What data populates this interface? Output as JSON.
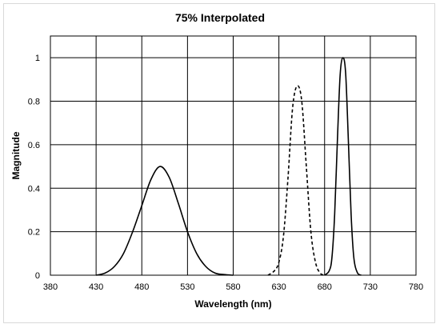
{
  "chart_data": {
    "type": "line",
    "title": "75% Interpolated",
    "xlabel": "Wavelength (nm)",
    "ylabel": "Magnitude",
    "xlim": [
      380,
      780
    ],
    "ylim": [
      0,
      1.1
    ],
    "xticks": [
      380,
      430,
      480,
      530,
      580,
      630,
      680,
      730,
      780
    ],
    "yticks": [
      0,
      0.2,
      0.4,
      0.6,
      0.8,
      1
    ],
    "ytick_labels": [
      "0",
      "0.2",
      "0.4",
      "0.6",
      "0.8",
      "1"
    ],
    "grid": true,
    "legend": "none",
    "series": [
      {
        "style": "solid",
        "x": [
          430,
          440,
          450,
          460,
          470,
          480,
          490,
          500,
          510,
          520,
          530,
          540,
          550,
          560,
          570,
          580
        ],
        "y": [
          0.0,
          0.01,
          0.04,
          0.1,
          0.2,
          0.32,
          0.44,
          0.5,
          0.45,
          0.33,
          0.2,
          0.1,
          0.04,
          0.01,
          0.003,
          0.0
        ]
      },
      {
        "style": "dashed",
        "x": [
          618,
          625,
          630,
          635,
          640,
          645,
          650,
          655,
          660,
          665,
          670,
          675,
          680
        ],
        "y": [
          0.0,
          0.02,
          0.06,
          0.18,
          0.45,
          0.77,
          0.87,
          0.8,
          0.5,
          0.2,
          0.06,
          0.01,
          0.0
        ]
      },
      {
        "style": "solid",
        "x": [
          680,
          685,
          688,
          691,
          694,
          697,
          700,
          703,
          706,
          709,
          712,
          716,
          720
        ],
        "y": [
          0.0,
          0.02,
          0.08,
          0.28,
          0.62,
          0.92,
          1.0,
          0.93,
          0.62,
          0.28,
          0.08,
          0.01,
          0.0
        ]
      }
    ]
  }
}
